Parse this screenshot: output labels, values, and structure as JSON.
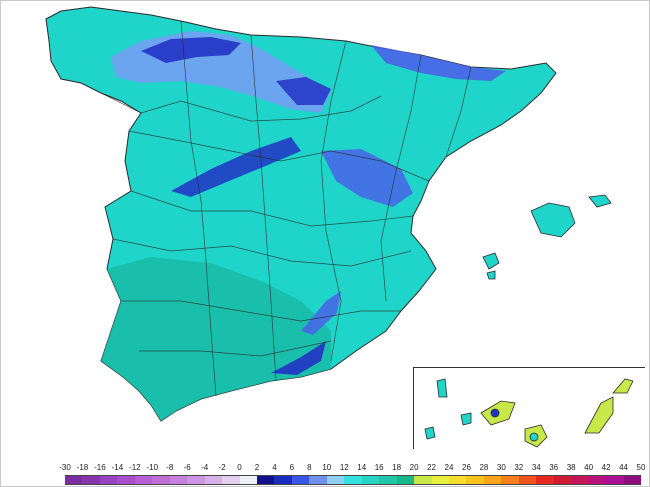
{
  "map": {
    "regions": [
      "Iberian Peninsula",
      "Balearic Islands",
      "Canary Islands"
    ],
    "colors": {
      "land_base": "#1fd4c9",
      "land_south": "#19b9a4",
      "cold_light": "#7a9cf6",
      "cold_mid": "#4a63e8",
      "cold_deep": "#2233c4",
      "border": "#2a2a2a"
    }
  },
  "scale": {
    "ticks": [
      "-30",
      "-18",
      "-16",
      "-14",
      "-12",
      "-10",
      "-8",
      "-6",
      "-4",
      "-2",
      "0",
      "2",
      "4",
      "6",
      "8",
      "10",
      "12",
      "14",
      "16",
      "18",
      "20",
      "22",
      "24",
      "26",
      "28",
      "30",
      "32",
      "34",
      "36",
      "38",
      "40",
      "42",
      "44",
      "50"
    ],
    "colors": [
      "#7b2da1",
      "#8a35b0",
      "#9a43c0",
      "#a94fcb",
      "#b85fd4",
      "#c06ed8",
      "#c880dd",
      "#cf95e2",
      "#d8b0e8",
      "#e3d0ef",
      "#f0f0f8",
      "#10108a",
      "#1a2cc0",
      "#3a56e6",
      "#7090ee",
      "#8fd0f0",
      "#34e0e0",
      "#27d4c4",
      "#1fc6a8",
      "#16b98c",
      "#c8e84a",
      "#e6ef3c",
      "#f6df2c",
      "#f8c41c",
      "#f7a51a",
      "#f4811b",
      "#f0541c",
      "#e52820",
      "#cf1b33",
      "#c4165b",
      "#b9127f",
      "#ab1096",
      "#8d0c80"
    ]
  }
}
